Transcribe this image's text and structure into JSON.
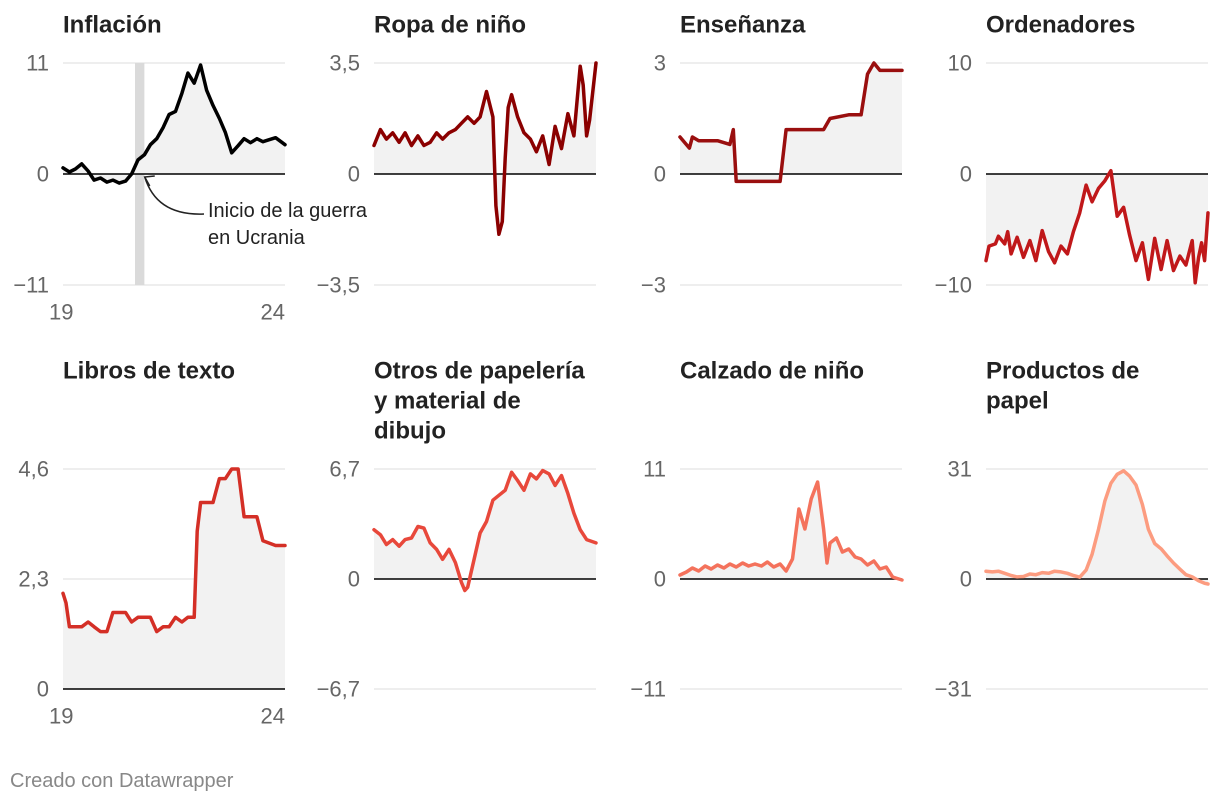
{
  "footer": {
    "credit": "Creado con Datawrapper"
  },
  "colors": {
    "zero_line": "#000000",
    "grid": "#dddddd",
    "area": "#f2f2f2",
    "shade": "#dadada",
    "tick": "#666666",
    "title": "#222222"
  },
  "chart_data": [
    {
      "type": "line",
      "title": [
        "Inflación"
      ],
      "color": "#000000",
      "ylim": [
        -11,
        11
      ],
      "yticks": [
        {
          "v": 11,
          "label": "11"
        },
        {
          "v": 0,
          "label": "0"
        },
        {
          "v": -11,
          "label": "−11"
        }
      ],
      "xlim": [
        2019,
        2024.92
      ],
      "xticks": [
        {
          "v": 2019,
          "label": "19"
        },
        {
          "v": 2024.92,
          "label": "24"
        }
      ],
      "shade": {
        "from": 2020.92,
        "to": 2021.17
      },
      "annotation": {
        "lines": [
          "Inicio de la guerra",
          "en Ucrania"
        ],
        "x": 2021.1,
        "y": 0
      },
      "points": [
        [
          2019.0,
          0.6
        ],
        [
          2019.17,
          0.2
        ],
        [
          2019.33,
          0.5
        ],
        [
          2019.5,
          1.0
        ],
        [
          2019.67,
          0.3
        ],
        [
          2019.83,
          -0.6
        ],
        [
          2020.0,
          -0.4
        ],
        [
          2020.17,
          -0.8
        ],
        [
          2020.33,
          -0.6
        ],
        [
          2020.5,
          -0.9
        ],
        [
          2020.67,
          -0.7
        ],
        [
          2020.83,
          0.0
        ],
        [
          2021.0,
          1.4
        ],
        [
          2021.17,
          1.9
        ],
        [
          2021.33,
          2.9
        ],
        [
          2021.5,
          3.5
        ],
        [
          2021.67,
          4.6
        ],
        [
          2021.83,
          5.9
        ],
        [
          2022.0,
          6.2
        ],
        [
          2022.17,
          8.0
        ],
        [
          2022.33,
          10.0
        ],
        [
          2022.5,
          9.0
        ],
        [
          2022.67,
          10.8
        ],
        [
          2022.83,
          8.3
        ],
        [
          2023.0,
          6.8
        ],
        [
          2023.17,
          5.5
        ],
        [
          2023.33,
          4.1
        ],
        [
          2023.5,
          2.1
        ],
        [
          2023.67,
          2.8
        ],
        [
          2023.83,
          3.5
        ],
        [
          2024.0,
          3.1
        ],
        [
          2024.17,
          3.5
        ],
        [
          2024.33,
          3.2
        ],
        [
          2024.5,
          3.4
        ],
        [
          2024.67,
          3.6
        ],
        [
          2024.92,
          2.9
        ]
      ]
    },
    {
      "type": "line",
      "title": [
        "Ropa de niño"
      ],
      "color": "#8b0000",
      "ylim": [
        -3.5,
        3.5
      ],
      "yticks": [
        {
          "v": 3.5,
          "label": "3,5"
        },
        {
          "v": 0,
          "label": "0"
        },
        {
          "v": -3.5,
          "label": "−3,5"
        }
      ],
      "xlim": [
        2019,
        2024.92
      ],
      "points": [
        [
          2019.0,
          0.9
        ],
        [
          2019.17,
          1.4
        ],
        [
          2019.33,
          1.1
        ],
        [
          2019.5,
          1.3
        ],
        [
          2019.67,
          1.0
        ],
        [
          2019.83,
          1.3
        ],
        [
          2020.0,
          0.9
        ],
        [
          2020.17,
          1.2
        ],
        [
          2020.33,
          0.9
        ],
        [
          2020.5,
          1.0
        ],
        [
          2020.67,
          1.3
        ],
        [
          2020.83,
          1.1
        ],
        [
          2021.0,
          1.3
        ],
        [
          2021.17,
          1.4
        ],
        [
          2021.33,
          1.6
        ],
        [
          2021.5,
          1.8
        ],
        [
          2021.67,
          1.6
        ],
        [
          2021.83,
          1.8
        ],
        [
          2022.0,
          2.6
        ],
        [
          2022.17,
          1.8
        ],
        [
          2022.25,
          -1.0
        ],
        [
          2022.33,
          -1.9
        ],
        [
          2022.42,
          -1.5
        ],
        [
          2022.5,
          0.5
        ],
        [
          2022.58,
          2.1
        ],
        [
          2022.67,
          2.5
        ],
        [
          2022.83,
          1.8
        ],
        [
          2023.0,
          1.3
        ],
        [
          2023.17,
          1.1
        ],
        [
          2023.33,
          0.7
        ],
        [
          2023.5,
          1.2
        ],
        [
          2023.67,
          0.3
        ],
        [
          2023.83,
          1.5
        ],
        [
          2024.0,
          0.8
        ],
        [
          2024.17,
          1.9
        ],
        [
          2024.33,
          1.2
        ],
        [
          2024.5,
          3.4
        ],
        [
          2024.58,
          2.8
        ],
        [
          2024.67,
          1.2
        ],
        [
          2024.75,
          1.7
        ],
        [
          2024.92,
          3.5
        ]
      ]
    },
    {
      "type": "line",
      "title": [
        "Enseñanza"
      ],
      "color": "#9a0f0f",
      "ylim": [
        -3,
        3
      ],
      "yticks": [
        {
          "v": 3,
          "label": "3"
        },
        {
          "v": 0,
          "label": "0"
        },
        {
          "v": -3,
          "label": "−3"
        }
      ],
      "xlim": [
        2019,
        2024.92
      ],
      "points": [
        [
          2019.0,
          1.0
        ],
        [
          2019.25,
          0.7
        ],
        [
          2019.33,
          1.0
        ],
        [
          2019.5,
          0.9
        ],
        [
          2020.0,
          0.9
        ],
        [
          2020.33,
          0.8
        ],
        [
          2020.42,
          1.2
        ],
        [
          2020.5,
          -0.2
        ],
        [
          2020.67,
          -0.2
        ],
        [
          2021.0,
          -0.2
        ],
        [
          2021.5,
          -0.2
        ],
        [
          2021.67,
          -0.2
        ],
        [
          2021.83,
          1.2
        ],
        [
          2022.0,
          1.2
        ],
        [
          2022.5,
          1.2
        ],
        [
          2022.83,
          1.2
        ],
        [
          2023.0,
          1.5
        ],
        [
          2023.5,
          1.6
        ],
        [
          2023.83,
          1.6
        ],
        [
          2024.0,
          2.7
        ],
        [
          2024.17,
          3.0
        ],
        [
          2024.33,
          2.8
        ],
        [
          2024.5,
          2.8
        ],
        [
          2024.67,
          2.8
        ],
        [
          2024.92,
          2.8
        ]
      ]
    },
    {
      "type": "line",
      "title": [
        "Ordenadores"
      ],
      "color": "#c0181a",
      "ylim": [
        -10,
        10
      ],
      "yticks": [
        {
          "v": 10,
          "label": "10"
        },
        {
          "v": 0,
          "label": "0"
        },
        {
          "v": -10,
          "label": "−10"
        }
      ],
      "xlim": [
        2019,
        2024.92
      ],
      "points": [
        [
          2019.0,
          -7.8
        ],
        [
          2019.08,
          -6.5
        ],
        [
          2019.25,
          -6.3
        ],
        [
          2019.33,
          -5.6
        ],
        [
          2019.5,
          -6.3
        ],
        [
          2019.58,
          -5.2
        ],
        [
          2019.67,
          -7.2
        ],
        [
          2019.83,
          -5.7
        ],
        [
          2020.0,
          -7.5
        ],
        [
          2020.17,
          -6.0
        ],
        [
          2020.33,
          -7.8
        ],
        [
          2020.5,
          -5.1
        ],
        [
          2020.67,
          -7.0
        ],
        [
          2020.83,
          -8.0
        ],
        [
          2021.0,
          -6.5
        ],
        [
          2021.17,
          -7.2
        ],
        [
          2021.33,
          -5.2
        ],
        [
          2021.5,
          -3.5
        ],
        [
          2021.67,
          -1.0
        ],
        [
          2021.83,
          -2.5
        ],
        [
          2022.0,
          -1.3
        ],
        [
          2022.17,
          -0.6
        ],
        [
          2022.33,
          0.3
        ],
        [
          2022.5,
          -3.8
        ],
        [
          2022.67,
          -3.0
        ],
        [
          2022.83,
          -5.5
        ],
        [
          2023.0,
          -7.8
        ],
        [
          2023.17,
          -6.2
        ],
        [
          2023.33,
          -9.5
        ],
        [
          2023.5,
          -5.8
        ],
        [
          2023.67,
          -8.6
        ],
        [
          2023.83,
          -6.0
        ],
        [
          2024.0,
          -8.7
        ],
        [
          2024.17,
          -7.4
        ],
        [
          2024.33,
          -8.2
        ],
        [
          2024.5,
          -6.0
        ],
        [
          2024.58,
          -9.8
        ],
        [
          2024.67,
          -7.5
        ],
        [
          2024.75,
          -6.2
        ],
        [
          2024.83,
          -7.8
        ],
        [
          2024.92,
          -3.5
        ]
      ]
    },
    {
      "type": "line",
      "title": [
        "Libros de texto"
      ],
      "color": "#d42f26",
      "ylim": [
        0,
        4.6
      ],
      "yticks": [
        {
          "v": 4.6,
          "label": "4,6"
        },
        {
          "v": 2.3,
          "label": "2,3"
        },
        {
          "v": 0,
          "label": "0"
        }
      ],
      "xlim": [
        2019,
        2024.92
      ],
      "xticks": [
        {
          "v": 2019,
          "label": "19"
        },
        {
          "v": 2024.92,
          "label": "24"
        }
      ],
      "points": [
        [
          2019.0,
          2.0
        ],
        [
          2019.08,
          1.8
        ],
        [
          2019.17,
          1.3
        ],
        [
          2019.5,
          1.3
        ],
        [
          2019.67,
          1.4
        ],
        [
          2019.83,
          1.3
        ],
        [
          2020.0,
          1.2
        ],
        [
          2020.17,
          1.2
        ],
        [
          2020.33,
          1.6
        ],
        [
          2020.67,
          1.6
        ],
        [
          2020.83,
          1.4
        ],
        [
          2021.0,
          1.5
        ],
        [
          2021.33,
          1.5
        ],
        [
          2021.5,
          1.2
        ],
        [
          2021.67,
          1.3
        ],
        [
          2021.83,
          1.3
        ],
        [
          2022.0,
          1.5
        ],
        [
          2022.17,
          1.4
        ],
        [
          2022.33,
          1.5
        ],
        [
          2022.5,
          1.5
        ],
        [
          2022.58,
          3.3
        ],
        [
          2022.67,
          3.9
        ],
        [
          2023.0,
          3.9
        ],
        [
          2023.17,
          4.4
        ],
        [
          2023.33,
          4.4
        ],
        [
          2023.5,
          4.6
        ],
        [
          2023.67,
          4.6
        ],
        [
          2023.83,
          3.6
        ],
        [
          2024.0,
          3.6
        ],
        [
          2024.17,
          3.6
        ],
        [
          2024.33,
          3.1
        ],
        [
          2024.67,
          3.0
        ],
        [
          2024.92,
          3.0
        ]
      ]
    },
    {
      "type": "line",
      "title": [
        "Otros de papelería",
        "y material de",
        "dibujo"
      ],
      "color": "#e8483b",
      "ylim": [
        -6.7,
        6.7
      ],
      "yticks": [
        {
          "v": 6.7,
          "label": "6,7"
        },
        {
          "v": 0,
          "label": "0"
        },
        {
          "v": -6.7,
          "label": "−6,7"
        }
      ],
      "xlim": [
        2019,
        2024.92
      ],
      "points": [
        [
          2019.0,
          3.0
        ],
        [
          2019.17,
          2.7
        ],
        [
          2019.33,
          2.1
        ],
        [
          2019.5,
          2.4
        ],
        [
          2019.67,
          2.0
        ],
        [
          2019.83,
          2.4
        ],
        [
          2020.0,
          2.5
        ],
        [
          2020.17,
          3.2
        ],
        [
          2020.33,
          3.1
        ],
        [
          2020.5,
          2.2
        ],
        [
          2020.67,
          1.8
        ],
        [
          2020.83,
          1.2
        ],
        [
          2021.0,
          1.8
        ],
        [
          2021.17,
          1.0
        ],
        [
          2021.33,
          -0.2
        ],
        [
          2021.42,
          -0.7
        ],
        [
          2021.5,
          -0.5
        ],
        [
          2021.67,
          1.2
        ],
        [
          2021.83,
          2.8
        ],
        [
          2022.0,
          3.5
        ],
        [
          2022.17,
          4.8
        ],
        [
          2022.33,
          5.1
        ],
        [
          2022.5,
          5.4
        ],
        [
          2022.67,
          6.5
        ],
        [
          2022.83,
          6.0
        ],
        [
          2023.0,
          5.4
        ],
        [
          2023.17,
          6.4
        ],
        [
          2023.33,
          6.1
        ],
        [
          2023.5,
          6.6
        ],
        [
          2023.67,
          6.4
        ],
        [
          2023.83,
          5.7
        ],
        [
          2024.0,
          6.3
        ],
        [
          2024.17,
          5.2
        ],
        [
          2024.33,
          4.0
        ],
        [
          2024.5,
          3.0
        ],
        [
          2024.67,
          2.4
        ],
        [
          2024.92,
          2.2
        ]
      ]
    },
    {
      "type": "line",
      "title": [
        "Calzado de niño"
      ],
      "color": "#f4725c",
      "ylim": [
        -11,
        11
      ],
      "yticks": [
        {
          "v": 11,
          "label": "11"
        },
        {
          "v": 0,
          "label": "0"
        },
        {
          "v": -11,
          "label": "−11"
        }
      ],
      "xlim": [
        2019,
        2024.92
      ],
      "points": [
        [
          2019.0,
          0.4
        ],
        [
          2019.17,
          0.7
        ],
        [
          2019.33,
          1.1
        ],
        [
          2019.5,
          0.8
        ],
        [
          2019.67,
          1.3
        ],
        [
          2019.83,
          1.0
        ],
        [
          2020.0,
          1.4
        ],
        [
          2020.17,
          1.1
        ],
        [
          2020.33,
          1.5
        ],
        [
          2020.5,
          1.2
        ],
        [
          2020.67,
          1.6
        ],
        [
          2020.83,
          1.3
        ],
        [
          2021.0,
          1.5
        ],
        [
          2021.17,
          1.3
        ],
        [
          2021.33,
          1.7
        ],
        [
          2021.5,
          1.2
        ],
        [
          2021.67,
          1.5
        ],
        [
          2021.83,
          0.8
        ],
        [
          2022.0,
          2.0
        ],
        [
          2022.17,
          7.0
        ],
        [
          2022.33,
          5.0
        ],
        [
          2022.5,
          8.0
        ],
        [
          2022.67,
          9.7
        ],
        [
          2022.83,
          5.0
        ],
        [
          2022.92,
          1.6
        ],
        [
          2023.0,
          3.6
        ],
        [
          2023.17,
          4.1
        ],
        [
          2023.33,
          2.7
        ],
        [
          2023.5,
          3.0
        ],
        [
          2023.67,
          2.2
        ],
        [
          2023.83,
          2.0
        ],
        [
          2024.0,
          1.4
        ],
        [
          2024.17,
          1.8
        ],
        [
          2024.33,
          1.0
        ],
        [
          2024.5,
          1.2
        ],
        [
          2024.67,
          0.2
        ],
        [
          2024.92,
          -0.1
        ]
      ]
    },
    {
      "type": "line",
      "title": [
        "Productos de",
        "papel"
      ],
      "color": "#fc9c80",
      "ylim": [
        -31,
        31
      ],
      "yticks": [
        {
          "v": 31,
          "label": "31"
        },
        {
          "v": 0,
          "label": "0"
        },
        {
          "v": -31,
          "label": "−31"
        }
      ],
      "xlim": [
        2019,
        2024.92
      ],
      "points": [
        [
          2019.0,
          2.2
        ],
        [
          2019.17,
          2.0
        ],
        [
          2019.33,
          2.2
        ],
        [
          2019.5,
          1.6
        ],
        [
          2019.67,
          1.0
        ],
        [
          2019.83,
          0.6
        ],
        [
          2020.0,
          0.7
        ],
        [
          2020.17,
          1.4
        ],
        [
          2020.33,
          1.2
        ],
        [
          2020.5,
          1.8
        ],
        [
          2020.67,
          1.6
        ],
        [
          2020.83,
          2.2
        ],
        [
          2021.0,
          2.0
        ],
        [
          2021.17,
          1.6
        ],
        [
          2021.33,
          1.0
        ],
        [
          2021.5,
          0.5
        ],
        [
          2021.67,
          2.5
        ],
        [
          2021.83,
          7.0
        ],
        [
          2022.0,
          14.0
        ],
        [
          2022.17,
          22.0
        ],
        [
          2022.33,
          27.0
        ],
        [
          2022.5,
          29.5
        ],
        [
          2022.67,
          30.5
        ],
        [
          2022.83,
          29.0
        ],
        [
          2023.0,
          26.5
        ],
        [
          2023.17,
          21.0
        ],
        [
          2023.33,
          14.0
        ],
        [
          2023.5,
          10.0
        ],
        [
          2023.67,
          8.5
        ],
        [
          2023.83,
          6.5
        ],
        [
          2024.0,
          4.5
        ],
        [
          2024.17,
          2.8
        ],
        [
          2024.33,
          1.2
        ],
        [
          2024.5,
          0.6
        ],
        [
          2024.67,
          -0.5
        ],
        [
          2024.83,
          -1.2
        ],
        [
          2024.92,
          -1.4
        ]
      ]
    }
  ]
}
